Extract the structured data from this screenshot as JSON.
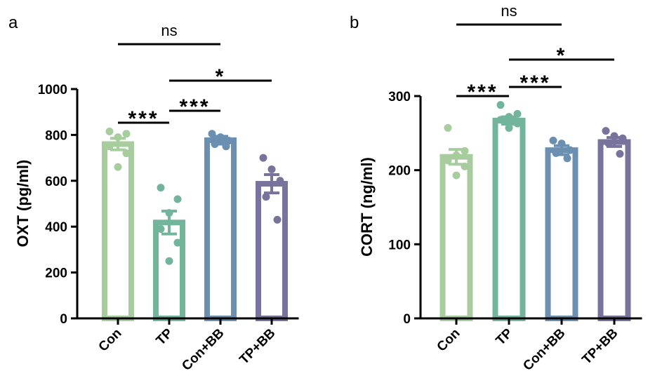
{
  "colors": {
    "Con": "#a7cc9e",
    "TP": "#72b49c",
    "Con+BB": "#6a8fb0",
    "TP+BB": "#78739d",
    "axis": "#000000"
  },
  "chart_data": [
    {
      "panel": "a",
      "type": "bar",
      "ylabel": "OXT (pg/ml)",
      "ylim": [
        0,
        1000
      ],
      "yticks": [
        0,
        200,
        400,
        600,
        800,
        1000
      ],
      "categories": [
        "Con",
        "TP",
        "Con+BB",
        "TP+BB"
      ],
      "values": [
        760,
        418,
        777,
        587
      ],
      "sem": [
        25,
        50,
        17,
        40
      ],
      "points": [
        [
          815,
          805,
          790,
          750,
          720,
          660
        ],
        [
          570,
          520,
          460,
          390,
          330,
          250
        ],
        [
          805,
          790,
          775,
          760,
          750
        ],
        [
          700,
          650,
          600,
          530,
          430
        ]
      ],
      "grid": false,
      "legend": "none",
      "significance": [
        {
          "from": "Con",
          "to": "TP",
          "label": "***"
        },
        {
          "from": "TP",
          "to": "Con+BB",
          "label": "***"
        },
        {
          "from": "TP",
          "to": "TP+BB",
          "label": "*"
        },
        {
          "from": "Con",
          "to": "Con+BB",
          "label": "ns"
        }
      ]
    },
    {
      "panel": "b",
      "type": "bar",
      "ylabel": "CORT (ng/ml)",
      "ylim": [
        0,
        300
      ],
      "yticks": [
        0,
        100,
        200,
        300
      ],
      "categories": [
        "Con",
        "TP",
        "Con+BB",
        "TP+BB"
      ],
      "values": [
        218,
        267,
        227,
        238
      ],
      "sem": [
        10,
        5,
        6,
        6
      ],
      "points": [
        [
          257,
          226,
          220,
          213,
          205,
          193
        ],
        [
          288,
          276,
          272,
          268,
          263,
          257
        ],
        [
          240,
          236,
          227,
          223,
          216
        ],
        [
          253,
          246,
          243,
          236,
          222
        ]
      ],
      "grid": false,
      "legend": "none",
      "significance": [
        {
          "from": "Con",
          "to": "TP",
          "label": "***"
        },
        {
          "from": "TP",
          "to": "Con+BB",
          "label": "***"
        },
        {
          "from": "TP",
          "to": "TP+BB",
          "label": "*"
        },
        {
          "from": "Con",
          "to": "Con+BB",
          "label": "ns"
        }
      ]
    }
  ]
}
